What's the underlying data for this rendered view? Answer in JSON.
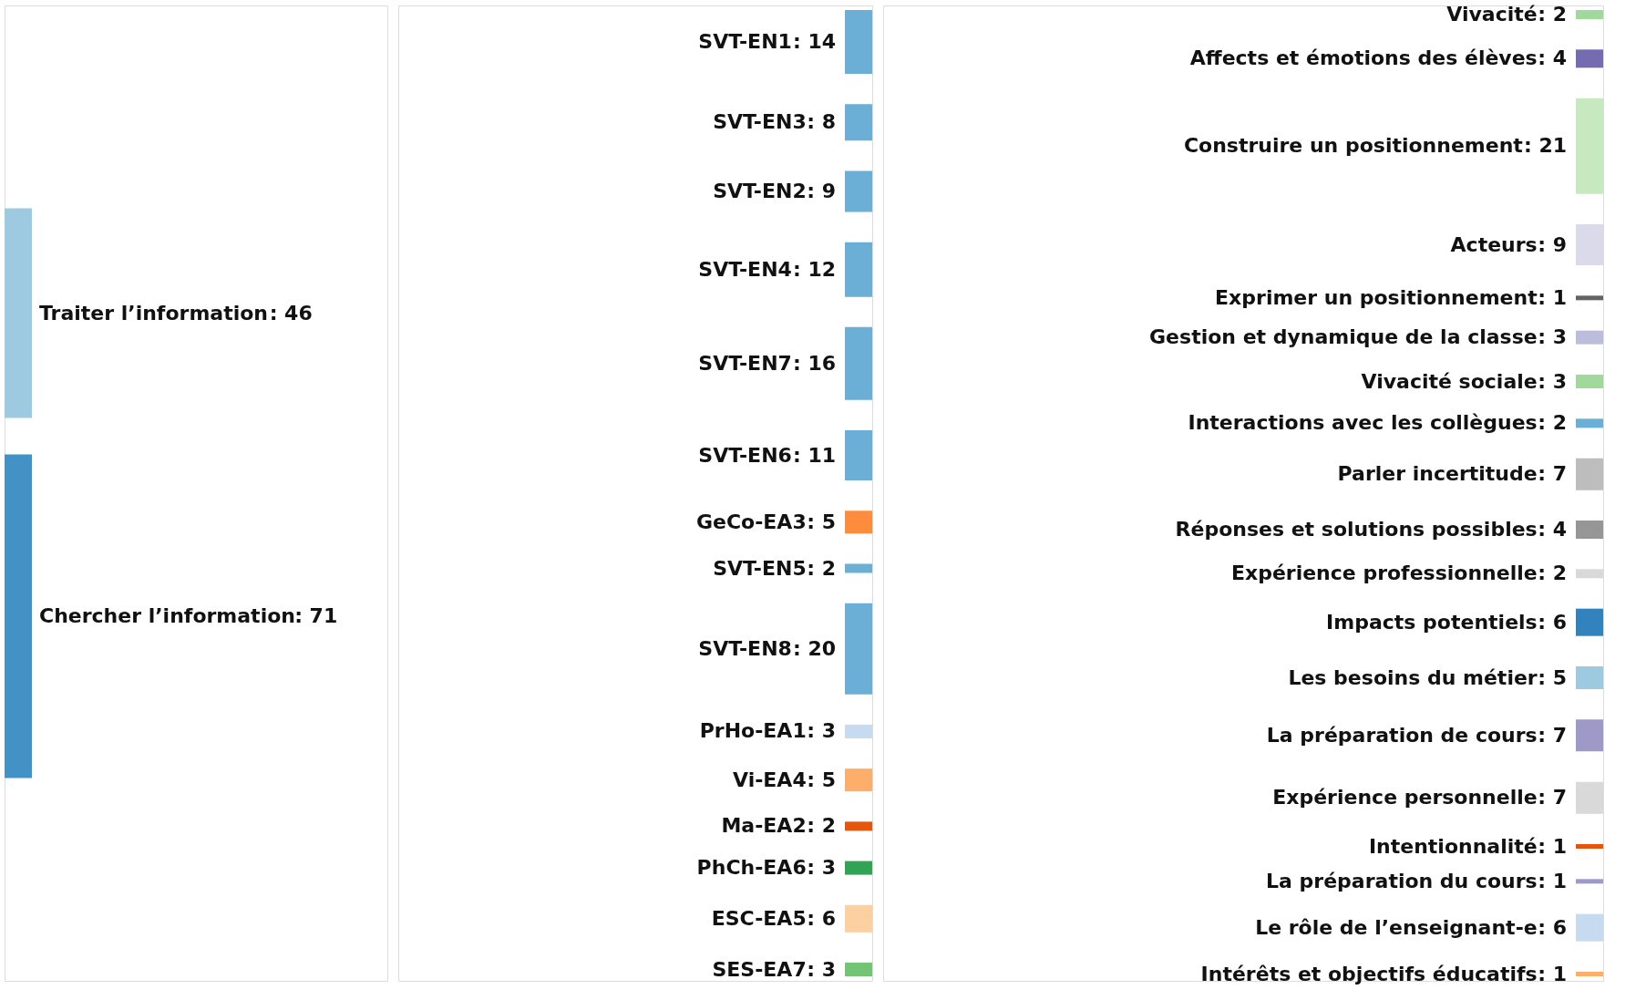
{
  "chart_data": [
    {
      "type": "other",
      "categories": [
        "Traiter l’information",
        "Chercher l’information"
      ],
      "values": [
        46,
        71
      ],
      "value_labels": [
        ": 46",
        ": 71"
      ],
      "colors": [
        "#9ecae1",
        "#4292c6"
      ]
    },
    {
      "type": "other",
      "categories": [
        "SVT-EN1",
        "SVT-EN3",
        "SVT-EN2",
        "SVT-EN4",
        "SVT-EN7",
        "SVT-EN6",
        "GeCo-EA3",
        "SVT-EN5",
        "SVT-EN8",
        "PrHo-EA1",
        "Vi-EA4",
        "Ma-EA2",
        "PhCh-EA6",
        "ESC-EA5",
        "SES-EA7"
      ],
      "values": [
        14,
        8,
        9,
        12,
        16,
        11,
        5,
        2,
        20,
        3,
        5,
        2,
        3,
        6,
        3
      ],
      "value_labels": [
        ": 14",
        ": 8",
        ": 9",
        ": 12",
        ": 16",
        ": 11",
        ": 5",
        ": 2",
        ": 20",
        ": 3",
        ": 5",
        ": 2",
        ": 3",
        ": 6",
        ": 3"
      ],
      "colors": [
        "#6baed6",
        "#6baed6",
        "#6baed6",
        "#6baed6",
        "#6baed6",
        "#6baed6",
        "#fd8d3c",
        "#6baed6",
        "#6baed6",
        "#c6dbef",
        "#fdae6b",
        "#e6550d",
        "#31a354",
        "#fdd0a2",
        "#74c476"
      ]
    },
    {
      "type": "other",
      "categories": [
        "Vivacité",
        "Affects et émotions des élèves",
        "Construire un positionnement",
        "Acteurs",
        "Exprimer un positionnement",
        "Gestion et dynamique de la classe",
        "Vivacité sociale",
        "Interactions avec les collègues",
        "Parler incertitude",
        "Réponses et solutions possibles",
        "Expérience professionnelle",
        "Impacts potentiels",
        "Les besoins du métier",
        "La préparation de cours",
        "Expérience personnelle",
        "Intentionnalité",
        "La préparation du cours",
        "Le rôle de l’enseignant-e",
        "Intérêts et objectifs éducatifs"
      ],
      "values": [
        2,
        4,
        21,
        9,
        1,
        3,
        3,
        2,
        7,
        4,
        2,
        6,
        5,
        7,
        7,
        1,
        1,
        6,
        1
      ],
      "value_labels": [
        ": 2",
        ": 4",
        ": 21",
        ": 9",
        ": 1",
        ": 3",
        ": 3",
        ": 2",
        ": 7",
        ": 4",
        ": 2",
        ": 6",
        ": 5",
        ": 7",
        ": 7",
        ": 1",
        ": 1",
        ": 6",
        ": 1"
      ],
      "colors": [
        "#a1d99b",
        "#756bb1",
        "#c7e9c0",
        "#dadaeb",
        "#636363",
        "#bcbddc",
        "#a1d99b",
        "#6baed6",
        "#bdbdbd",
        "#969696",
        "#d9d9d9",
        "#3182bd",
        "#9ecae1",
        "#9e9ac8",
        "#d9d9d9",
        "#e6550d",
        "#9e9ac8",
        "#c6dbef",
        "#fdae6b"
      ]
    }
  ]
}
